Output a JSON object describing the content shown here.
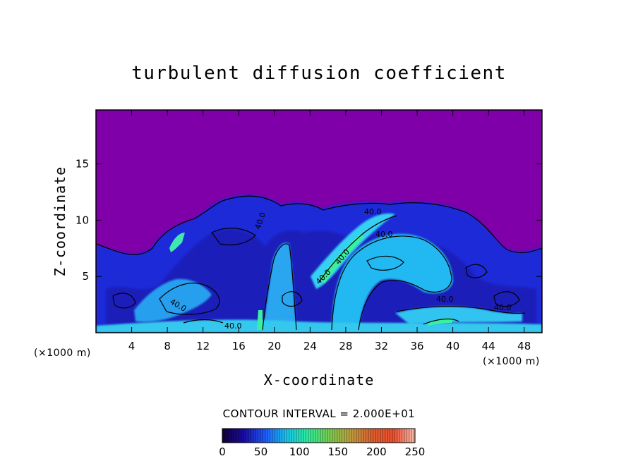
{
  "chart_data": {
    "type": "heatmap",
    "title": "turbulent diffusion coefficient",
    "xlabel": "X-coordinate",
    "ylabel": "Z-coordinate",
    "x_unit_left": "(×1000 m)",
    "x_unit_right": "(×1000 m)",
    "xlim": [
      0,
      50
    ],
    "ylim": [
      0,
      19.8
    ],
    "x_ticks": [
      4,
      8,
      12,
      16,
      20,
      24,
      28,
      32,
      36,
      40,
      44,
      48
    ],
    "x_tick_labels": [
      "4",
      "8",
      "12",
      "16",
      "20",
      "24",
      "28",
      "32",
      "36",
      "40",
      "44",
      "48"
    ],
    "y_ticks": [
      5,
      10,
      15
    ],
    "y_tick_labels": [
      "5",
      "10",
      "15"
    ],
    "contour_interval_text": "CONTOUR INTERVAL = 2.000E+01",
    "contour_labels": [
      "40.0",
      "40.0",
      "40.0",
      "40.0",
      "40.0",
      "40.0",
      "40.0",
      "40.0",
      "40.0"
    ],
    "colorbar": {
      "range": [
        0,
        250
      ],
      "ticks": [
        0,
        50,
        100,
        150,
        200,
        250
      ],
      "tick_labels": [
        "0",
        "50",
        "100",
        "150",
        "200",
        "250"
      ],
      "colors": [
        "#12003a",
        "#1a0aa8",
        "#1e5cff",
        "#18c8f0",
        "#2ef0a0",
        "#7ad050",
        "#c0a040",
        "#e06030",
        "#f05030",
        "#f8c0b0"
      ]
    },
    "background_color": "#7f00a8"
  }
}
